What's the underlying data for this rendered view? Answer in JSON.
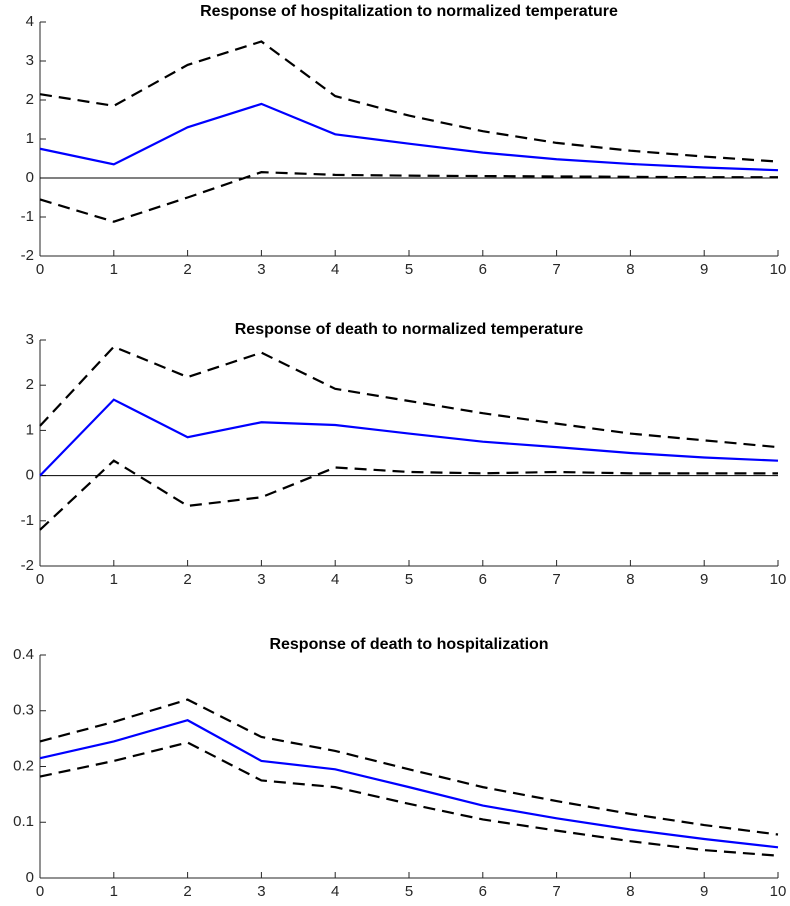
{
  "chart_data": [
    {
      "type": "line",
      "title": "Response of hospitalization to normalized temperature",
      "x": [
        0,
        1,
        2,
        3,
        4,
        5,
        6,
        7,
        8,
        9,
        10
      ],
      "xlim": [
        0,
        10
      ],
      "xticks": [
        0,
        1,
        2,
        3,
        4,
        5,
        6,
        7,
        8,
        9,
        10
      ],
      "ylim": [
        -2,
        4
      ],
      "yticks": [
        -2,
        -1,
        0,
        1,
        2,
        3,
        4
      ],
      "zero_line": true,
      "series": [
        {
          "color": "#0000ff",
          "dash": false,
          "values": [
            0.75,
            0.35,
            1.3,
            1.9,
            1.12,
            0.88,
            0.65,
            0.48,
            0.36,
            0.27,
            0.2
          ]
        },
        {
          "color": "#000000",
          "dash": true,
          "values": [
            2.15,
            1.85,
            2.9,
            3.5,
            2.1,
            1.6,
            1.2,
            0.9,
            0.7,
            0.55,
            0.42
          ]
        },
        {
          "color": "#000000",
          "dash": true,
          "values": [
            -0.55,
            -1.12,
            -0.5,
            0.15,
            0.08,
            0.06,
            0.05,
            0.04,
            0.03,
            0.02,
            0.02
          ]
        }
      ]
    },
    {
      "type": "line",
      "title": "Response of death to normalized temperature",
      "x": [
        0,
        1,
        2,
        3,
        4,
        5,
        6,
        7,
        8,
        9,
        10
      ],
      "xlim": [
        0,
        10
      ],
      "xticks": [
        0,
        1,
        2,
        3,
        4,
        5,
        6,
        7,
        8,
        9,
        10
      ],
      "ylim": [
        -2,
        3
      ],
      "yticks": [
        -2,
        -1,
        0,
        1,
        2,
        3
      ],
      "zero_line": true,
      "series": [
        {
          "color": "#0000ff",
          "dash": false,
          "values": [
            0,
            1.68,
            0.85,
            1.18,
            1.12,
            0.93,
            0.75,
            0.63,
            0.5,
            0.4,
            0.33
          ]
        },
        {
          "color": "#000000",
          "dash": true,
          "values": [
            1.1,
            2.85,
            2.18,
            2.72,
            1.92,
            1.65,
            1.38,
            1.15,
            0.93,
            0.78,
            0.63
          ]
        },
        {
          "color": "#000000",
          "dash": true,
          "values": [
            -1.2,
            0.33,
            -0.67,
            -0.48,
            0.18,
            0.08,
            0.05,
            0.08,
            0.05,
            0.05,
            0.05
          ]
        }
      ]
    },
    {
      "type": "line",
      "title": "Response of death to hospitalization",
      "x": [
        0,
        1,
        2,
        3,
        4,
        5,
        6,
        7,
        8,
        9,
        10
      ],
      "xlim": [
        0,
        10
      ],
      "xticks": [
        0,
        1,
        2,
        3,
        4,
        5,
        6,
        7,
        8,
        9,
        10
      ],
      "ylim": [
        0,
        0.4
      ],
      "yticks": [
        0,
        0.1,
        0.2,
        0.3,
        0.4
      ],
      "zero_line": false,
      "series": [
        {
          "color": "#0000ff",
          "dash": false,
          "values": [
            0.215,
            0.245,
            0.283,
            0.21,
            0.195,
            0.163,
            0.13,
            0.107,
            0.087,
            0.07,
            0.055
          ]
        },
        {
          "color": "#000000",
          "dash": true,
          "values": [
            0.245,
            0.28,
            0.32,
            0.253,
            0.228,
            0.195,
            0.163,
            0.138,
            0.115,
            0.095,
            0.078
          ]
        },
        {
          "color": "#000000",
          "dash": true,
          "values": [
            0.182,
            0.21,
            0.243,
            0.175,
            0.163,
            0.133,
            0.105,
            0.085,
            0.066,
            0.05,
            0.04
          ]
        }
      ]
    }
  ]
}
